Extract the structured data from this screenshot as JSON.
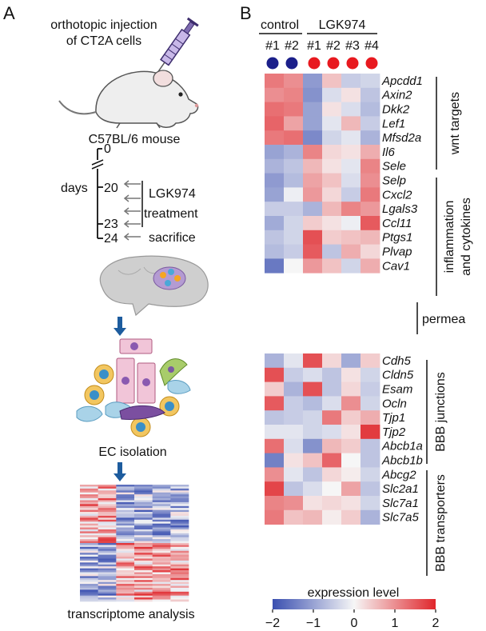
{
  "panel_a": {
    "letter": "A",
    "injection_line1": "orthotopic injection",
    "injection_line2": "of CT2A cells",
    "mouse_label": "C57BL/6 mouse",
    "timeline": {
      "days_label": "days",
      "day_0": "0",
      "day_20": "20",
      "day_23": "23",
      "day_24": "24",
      "treatment_line1": "LGK974",
      "treatment_line2": "treatment",
      "sacrifice": "sacrifice"
    },
    "ec_isolation": "EC isolation",
    "transcriptome": "transcriptome analysis"
  },
  "panel_b": {
    "letter": "B",
    "group_control": "control",
    "group_treatment": "LGK974",
    "columns": [
      "#1",
      "#2",
      "#1",
      "#2",
      "#3",
      "#4"
    ],
    "column_dot_colors": [
      "#1b1f8a",
      "#1b1f8a",
      "#e8191f",
      "#e8191f",
      "#e8191f",
      "#e8191f"
    ],
    "brackets": [
      {
        "label": "wnt targets"
      },
      {
        "label": "inflammation"
      },
      {
        "label": "and cytokines"
      },
      {
        "label": "permea"
      },
      {
        "label": "BBB junctions"
      },
      {
        "label": "BBB transporters"
      }
    ],
    "colorbar": {
      "title": "expression level",
      "tick_labels": [
        "−2",
        "−1",
        "0",
        "1",
        "2"
      ],
      "low_color": "#3a4fb0",
      "mid_color": "#f6f6f6",
      "high_color": "#e0262b"
    }
  },
  "chart_data": {
    "type": "heatmap",
    "columns": [
      "#1",
      "#2",
      "#1",
      "#2",
      "#3",
      "#4"
    ],
    "blocks": [
      {
        "rows": [
          "Apcdd1",
          "Axin2",
          "Dkk2",
          "Lef1",
          "Mfsd2a",
          "Il6",
          "Sele",
          "Selp",
          "Cxcl2",
          "Lgals3",
          "Ccl11",
          "Ptgs1",
          "Plvap",
          "Cav1"
        ],
        "values": [
          [
            1.2,
            1.0,
            -1.1,
            0.5,
            -0.5,
            -0.4
          ],
          [
            1.0,
            1.1,
            -1.2,
            -0.3,
            0.2,
            -0.6
          ],
          [
            1.3,
            1.2,
            -1.0,
            0.2,
            -0.3,
            -0.7
          ],
          [
            1.4,
            0.8,
            -1.0,
            -0.2,
            0.6,
            -0.5
          ],
          [
            1.2,
            1.3,
            -1.3,
            -0.4,
            -0.2,
            -0.8
          ],
          [
            -1.0,
            -0.8,
            1.1,
            0.3,
            0.2,
            0.7
          ],
          [
            -0.8,
            -0.6,
            0.6,
            0.2,
            -0.2,
            1.1
          ],
          [
            -1.1,
            -0.7,
            0.8,
            0.5,
            -0.3,
            1.0
          ],
          [
            -1.0,
            -0.1,
            0.9,
            0.3,
            -0.5,
            1.2
          ],
          [
            -0.5,
            -0.5,
            -0.8,
            0.6,
            1.1,
            0.9
          ],
          [
            -0.9,
            -0.4,
            0.4,
            0.2,
            -0.1,
            1.5
          ],
          [
            -0.6,
            -0.4,
            1.6,
            0.4,
            0.5,
            0.6
          ],
          [
            -0.7,
            -0.5,
            1.5,
            -0.6,
            0.7,
            0.3
          ],
          [
            -1.5,
            0.0,
            0.9,
            0.5,
            -0.4,
            0.7
          ]
        ]
      },
      {
        "rows": [
          "Cdh5",
          "Cldn5",
          "Esam",
          "Ocln",
          "Tjp1",
          "Tjp2",
          "Abcb1a",
          "Abcb1b",
          "Abcg2",
          "Slc2a1",
          "Slc7a1",
          "Slc7a5"
        ],
        "values": [
          [
            -0.8,
            -0.2,
            1.6,
            0.3,
            -0.9,
            0.4
          ],
          [
            1.6,
            -0.5,
            -0.3,
            -0.6,
            0.2,
            -0.4
          ],
          [
            0.4,
            -0.8,
            1.6,
            -0.6,
            0.3,
            -0.5
          ],
          [
            1.5,
            -0.5,
            -0.7,
            -0.3,
            1.0,
            -0.4
          ],
          [
            -0.6,
            -0.5,
            -0.4,
            1.2,
            0.4,
            0.7
          ],
          [
            -0.2,
            -0.2,
            -0.4,
            -0.3,
            0.2,
            1.8
          ],
          [
            1.3,
            -0.3,
            -1.2,
            0.6,
            0.4,
            -0.6
          ],
          [
            -1.4,
            0.2,
            0.5,
            1.4,
            0.0,
            -0.6
          ],
          [
            1.0,
            -0.2,
            -0.6,
            0.3,
            0.1,
            -0.4
          ],
          [
            1.7,
            -0.6,
            -0.3,
            0.0,
            0.8,
            -0.6
          ],
          [
            1.1,
            1.0,
            0.2,
            0.3,
            0.2,
            -0.4
          ],
          [
            1.2,
            0.5,
            0.6,
            0.1,
            0.4,
            -0.8
          ]
        ]
      }
    ],
    "zlim": [
      -2,
      2
    ],
    "colorbar_ticks": [
      -2,
      -1,
      0,
      1,
      2
    ],
    "colormap": [
      "#3a4fb0",
      "#f6f6f6",
      "#e0262b"
    ]
  }
}
